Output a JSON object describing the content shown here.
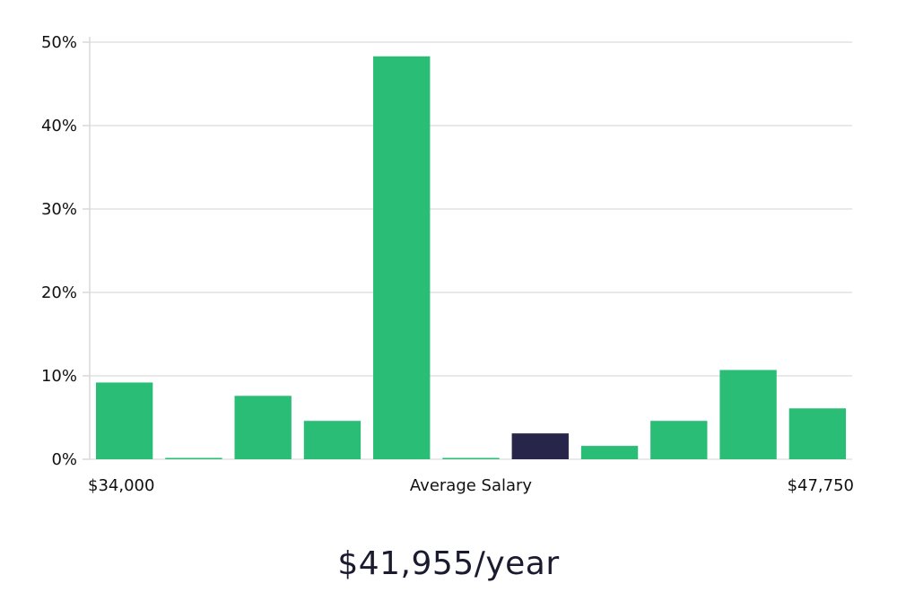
{
  "chart_data": {
    "type": "bar",
    "categories": [
      "1",
      "2",
      "3",
      "4",
      "5",
      "6",
      "7",
      "8",
      "9",
      "10",
      "11"
    ],
    "values": [
      9.2,
      0.1,
      7.6,
      4.6,
      48.3,
      0.1,
      3.1,
      1.6,
      4.6,
      10.7,
      6.1
    ],
    "highlight_index": 6,
    "ylim": [
      0,
      50
    ],
    "yticks": [
      0,
      10,
      20,
      30,
      40,
      50
    ],
    "ytick_labels": [
      "0%",
      "10%",
      "20%",
      "30%",
      "40%",
      "50%"
    ],
    "x_min_label": "$34,000",
    "x_center_label": "Average Salary",
    "x_max_label": "$47,750",
    "grid": true,
    "colors": {
      "bar": "#29bd76",
      "highlight": "#27264a"
    }
  },
  "summary": {
    "salary": "$41,955/year"
  }
}
